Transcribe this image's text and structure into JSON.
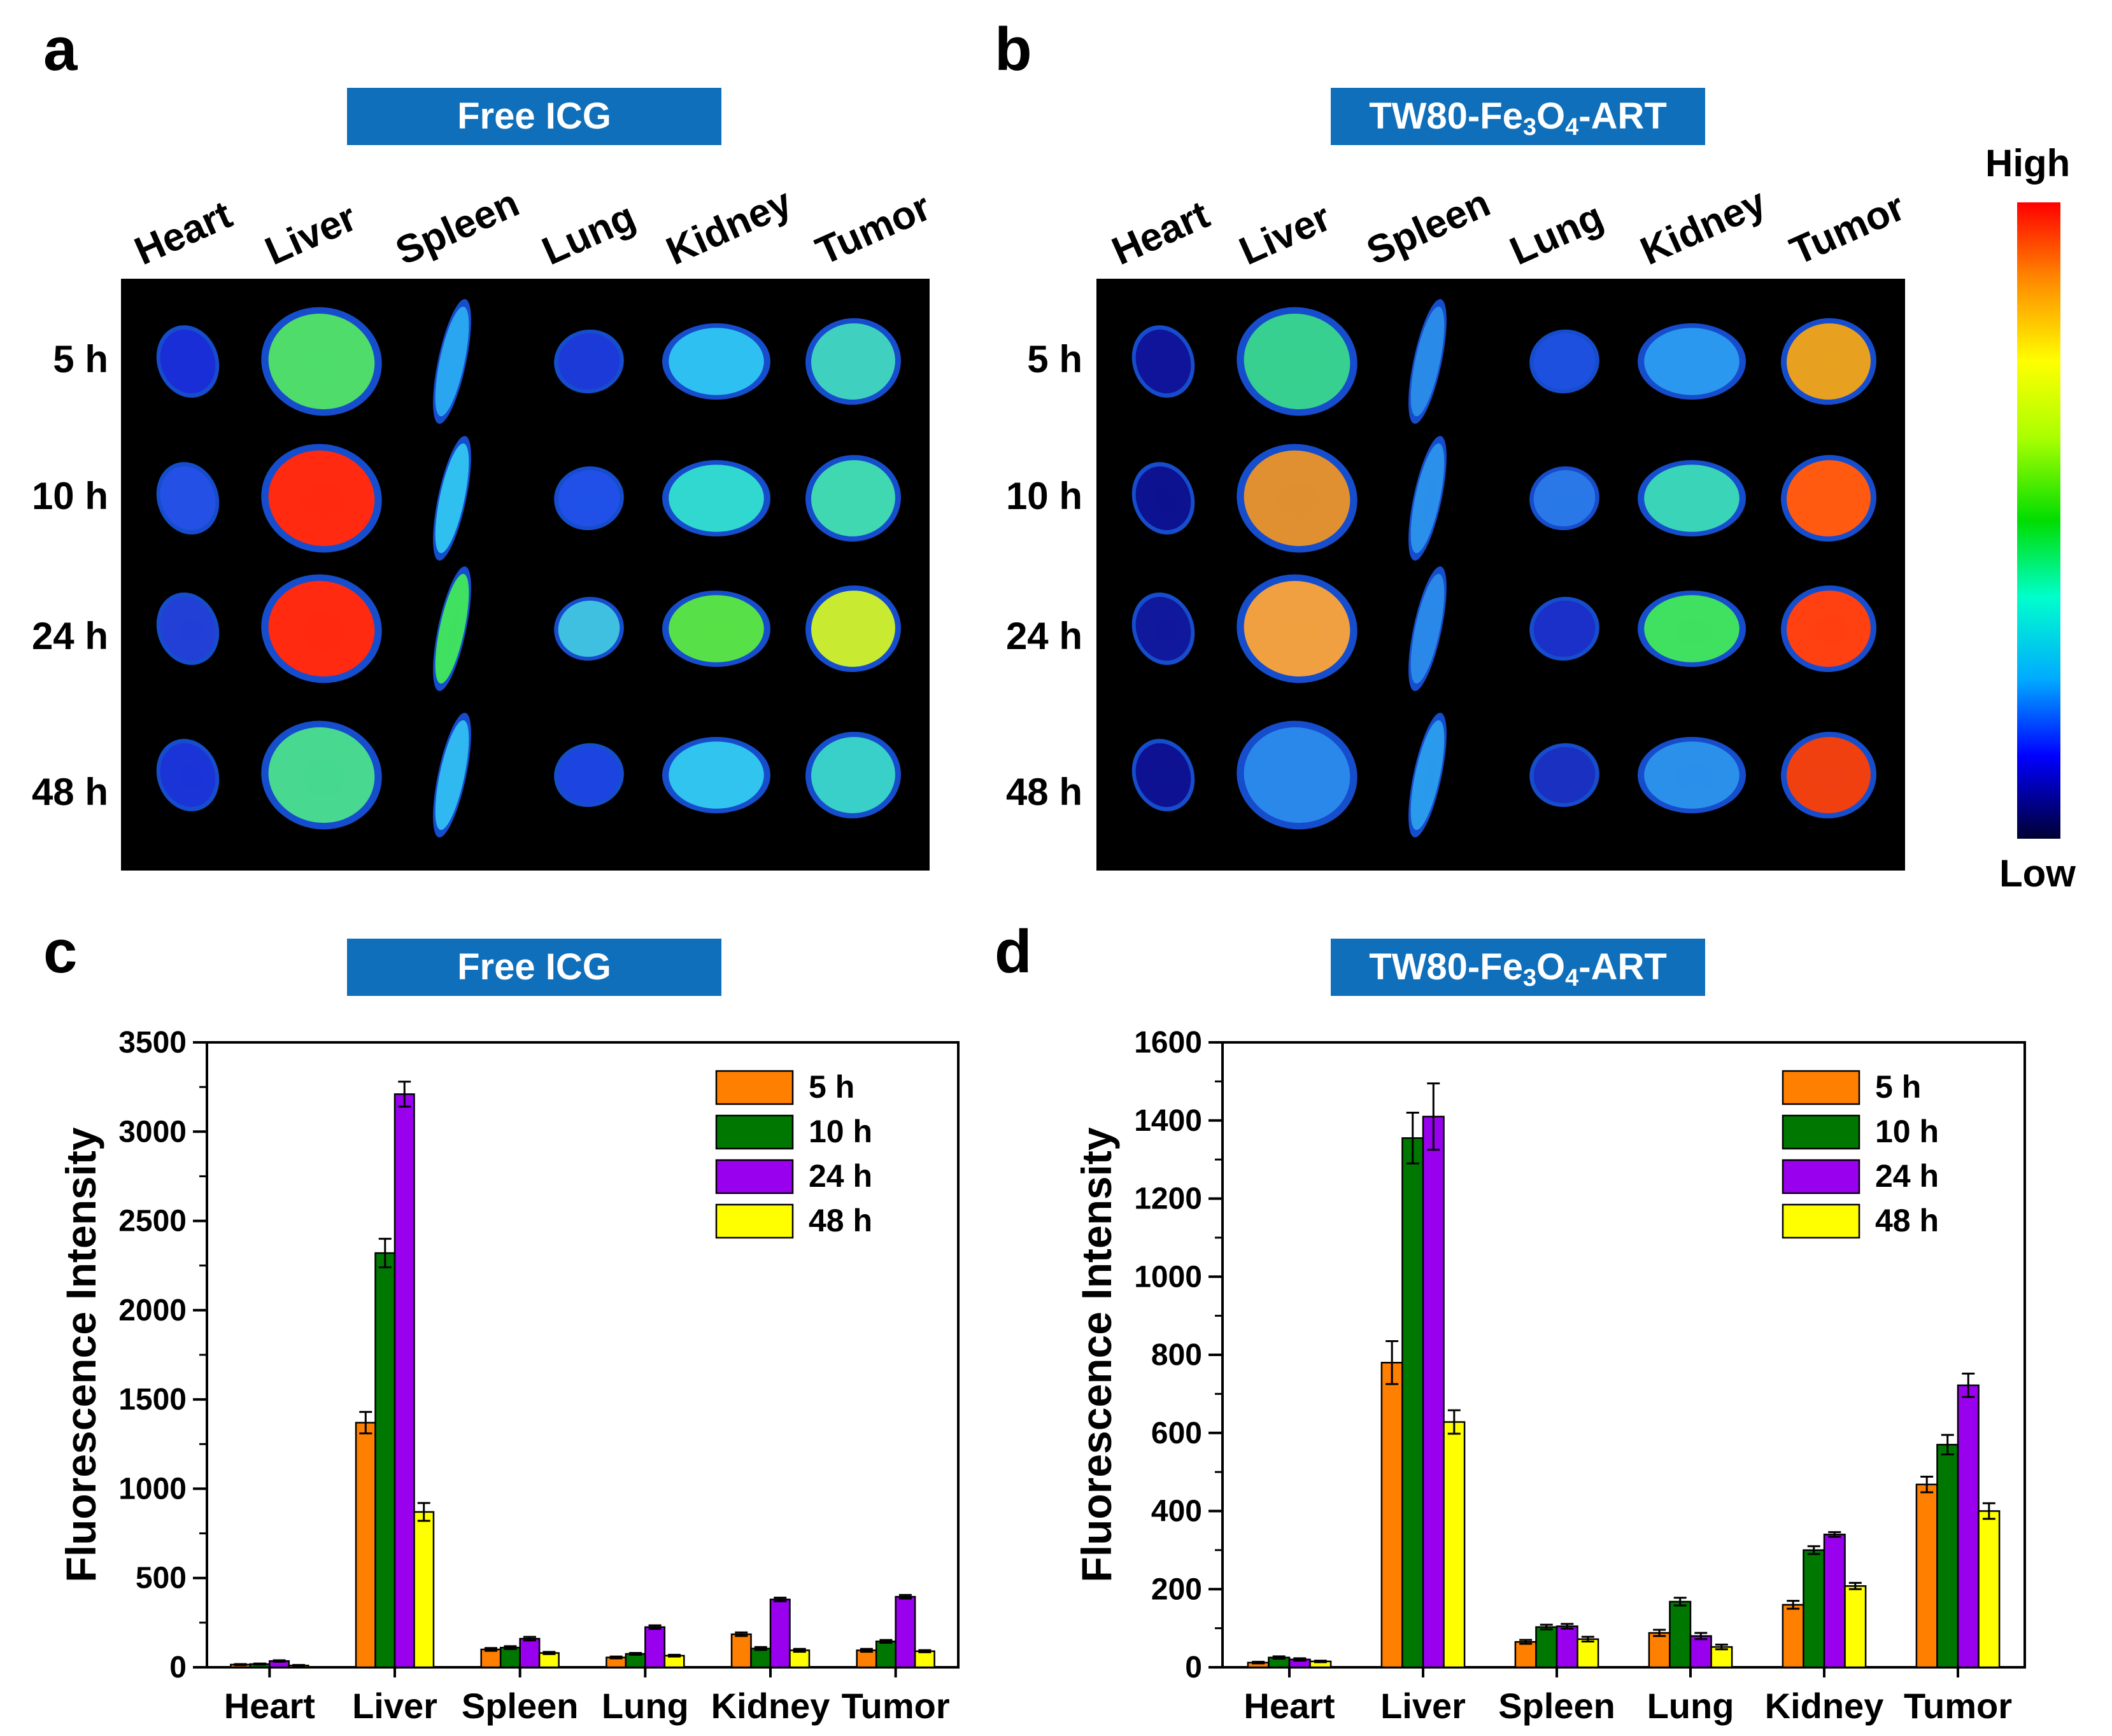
{
  "panels": {
    "a": {
      "letter": "a",
      "banner": "Free ICG"
    },
    "b": {
      "letter": "b",
      "banner_parts": [
        "TW80-Fe",
        "3",
        "O",
        "4",
        "-ART"
      ]
    },
    "c": {
      "letter": "c",
      "banner": "Free ICG"
    },
    "d": {
      "letter": "d",
      "banner_parts": [
        "TW80-Fe",
        "3",
        "O",
        "4",
        "-ART"
      ]
    }
  },
  "organs": [
    "Heart",
    "Liver",
    "Spleen",
    "Lung",
    "Kidney",
    "Tumor"
  ],
  "times": [
    "5 h",
    "10 h",
    "24 h",
    "48 h"
  ],
  "colorbar": {
    "high": "High",
    "low": "Low",
    "colors": [
      "#000033",
      "#0000ff",
      "#00aaff",
      "#00ffcc",
      "#00dd00",
      "#aaff00",
      "#ffff00",
      "#ff8800",
      "#ff0000"
    ]
  },
  "imaging": {
    "free_icg": [
      [
        "#1a2ed8",
        "#4fdc6a",
        "#2aa6f0",
        "#1c3ad8",
        "#2ec0f0",
        "#40d0c0"
      ],
      [
        "#2450e6",
        "#ff2a10",
        "#30c0f0",
        "#2050e8",
        "#30d8d0",
        "#40d8b0"
      ],
      [
        "#2240d6",
        "#ff2a10",
        "#40e060",
        "#40c0e0",
        "#58e048",
        "#c8ea30"
      ],
      [
        "#1a34d8",
        "#48d890",
        "#30b8f0",
        "#1c44e0",
        "#30c4ee",
        "#38d0c8"
      ]
    ],
    "tw80": [
      [
        "#10149a",
        "#38d090",
        "#2a8ae8",
        "#1e50e0",
        "#2a98ee",
        "#e8a020"
      ],
      [
        "#0c1290",
        "#e09030",
        "#2a90ea",
        "#2a78e8",
        "#3ad4b8",
        "#ff5a10"
      ],
      [
        "#10189c",
        "#f0a040",
        "#2a88e8",
        "#1a30c8",
        "#40e060",
        "#ff4010"
      ],
      [
        "#0e1292",
        "#2a88ea",
        "#2a9aec",
        "#1a30c0",
        "#2a90ea",
        "#f04010"
      ]
    ]
  },
  "chart_data": [
    {
      "type": "bar",
      "title": "Free ICG",
      "xlabel": "",
      "ylabel": "Fluorescence Intensity",
      "ylim": [
        0,
        3500
      ],
      "yticks": [
        0,
        500,
        1000,
        1500,
        2000,
        2500,
        3000,
        3500
      ],
      "categories": [
        "Heart",
        "Liver",
        "Spleen",
        "Lung",
        "Kidney",
        "Tumor"
      ],
      "series": [
        {
          "name": "5 h",
          "color": "#ff8000",
          "values": [
            15,
            1370,
            100,
            55,
            185,
            95
          ],
          "errors": [
            3,
            60,
            8,
            5,
            10,
            8
          ]
        },
        {
          "name": "10 h",
          "color": "#007700",
          "values": [
            18,
            2320,
            110,
            75,
            105,
            145
          ],
          "errors": [
            3,
            80,
            8,
            5,
            8,
            8
          ]
        },
        {
          "name": "24 h",
          "color": "#9900ee",
          "values": [
            35,
            3210,
            160,
            225,
            380,
            395
          ],
          "errors": [
            4,
            70,
            10,
            10,
            10,
            10
          ]
        },
        {
          "name": "48 h",
          "color": "#ffff00",
          "values": [
            10,
            870,
            80,
            65,
            95,
            90
          ],
          "errors": [
            3,
            50,
            6,
            5,
            8,
            6
          ]
        }
      ],
      "legend": "top-right"
    },
    {
      "type": "bar",
      "title": "TW80-Fe3O4-ART",
      "xlabel": "",
      "ylabel": "Fluorescence Intensity",
      "ylim": [
        0,
        1600
      ],
      "yticks": [
        0,
        200,
        400,
        600,
        800,
        1000,
        1200,
        1400,
        1600
      ],
      "categories": [
        "Heart",
        "Liver",
        "Spleen",
        "Lung",
        "Kidney",
        "Tumor"
      ],
      "series": [
        {
          "name": "5 h",
          "color": "#ff8000",
          "values": [
            12,
            780,
            65,
            88,
            160,
            468
          ],
          "errors": [
            2,
            55,
            5,
            8,
            10,
            20
          ]
        },
        {
          "name": "10 h",
          "color": "#007700",
          "values": [
            25,
            1355,
            103,
            168,
            300,
            570
          ],
          "errors": [
            3,
            65,
            6,
            10,
            10,
            25
          ]
        },
        {
          "name": "24 h",
          "color": "#9900ee",
          "values": [
            20,
            1410,
            105,
            80,
            340,
            722
          ],
          "errors": [
            3,
            85,
            6,
            8,
            6,
            30
          ]
        },
        {
          "name": "48 h",
          "color": "#ffff00",
          "values": [
            15,
            628,
            72,
            52,
            208,
            400
          ],
          "errors": [
            2,
            30,
            6,
            6,
            8,
            20
          ]
        }
      ],
      "legend": "top-right"
    }
  ]
}
